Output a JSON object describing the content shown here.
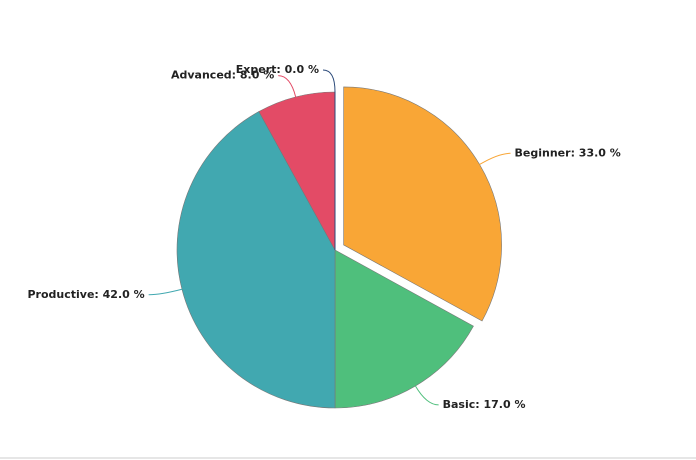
{
  "chart_data": {
    "type": "pie",
    "values": [
      33,
      17,
      42,
      8,
      0
    ],
    "value_labels": [
      "Beginner: 33.0 %",
      "Basic: 17.0 %",
      "Productive: 42.0 %",
      "Advanced: 8.0 %",
      "Expert: 0.0 %"
    ],
    "colors": [
      "#f9a636",
      "#4fbf7c",
      "#41a8b0",
      "#e34b66",
      "#2b4a7a"
    ],
    "exploded": [
      true,
      false,
      false,
      false,
      false
    ]
  }
}
